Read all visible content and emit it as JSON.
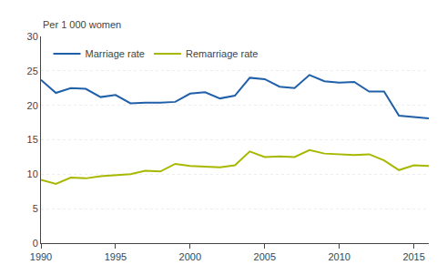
{
  "chart_data": {
    "type": "line",
    "ylabel": "Per 1 000 women",
    "x": [
      1990,
      1991,
      1992,
      1993,
      1994,
      1995,
      1996,
      1997,
      1998,
      1999,
      2000,
      2001,
      2002,
      2003,
      2004,
      2005,
      2006,
      2007,
      2008,
      2009,
      2010,
      2011,
      2012,
      2013,
      2014,
      2015,
      2016
    ],
    "series": [
      {
        "name": "Marriage rate",
        "color": "#2060a8",
        "values": [
          23.7,
          21.8,
          22.5,
          22.4,
          21.2,
          21.5,
          20.3,
          20.4,
          20.4,
          20.5,
          21.7,
          21.9,
          21.0,
          21.4,
          24.0,
          23.8,
          22.7,
          22.5,
          24.4,
          23.5,
          23.3,
          23.4,
          22.0,
          22.0,
          18.5,
          18.3,
          18.1
        ]
      },
      {
        "name": "Remarriage rate",
        "color": "#a8b800",
        "values": [
          9.2,
          8.6,
          9.5,
          9.4,
          9.7,
          9.9,
          10.0,
          10.5,
          10.4,
          11.5,
          11.2,
          11.1,
          11.0,
          11.3,
          13.3,
          12.5,
          12.6,
          12.5,
          13.5,
          13.0,
          12.9,
          12.8,
          12.9,
          12.0,
          10.6,
          11.3,
          11.2
        ]
      }
    ],
    "xlim": [
      1990,
      2016
    ],
    "xticks": [
      1990,
      1995,
      2000,
      2005,
      2010,
      2015
    ],
    "ylim": [
      0,
      30
    ],
    "yticks": [
      0,
      5,
      10,
      15,
      20,
      25,
      30
    ],
    "grid": "y",
    "legend": "upper left"
  }
}
